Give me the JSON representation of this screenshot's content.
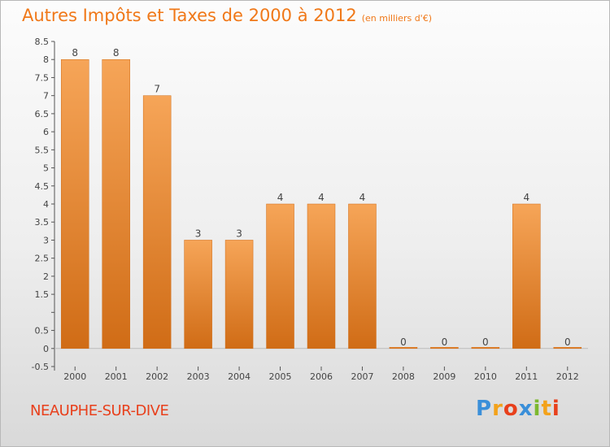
{
  "header": {
    "title": "Autres Impôts et Taxes de 2000 à 2012",
    "subtitle": "(en milliers d'€)"
  },
  "footer": {
    "place": "NEAUPHE-SUR-DIVE",
    "logo": "Proxiti",
    "logo_colors": [
      "#3a8fd9",
      "#f3a21a",
      "#e8401c",
      "#3a8fd9",
      "#7cb82f",
      "#f3a21a",
      "#e8401c"
    ]
  },
  "colors": {
    "bar_top": "#f6a558",
    "bar_bottom": "#d06c16",
    "title": "#f07818",
    "place": "#e8401c"
  },
  "chart_data": {
    "type": "bar",
    "title": "Autres Impôts et Taxes de 2000 à 2012",
    "subtitle": "(en milliers d'€)",
    "categories": [
      "2000",
      "2001",
      "2002",
      "2003",
      "2004",
      "2005",
      "2006",
      "2007",
      "2008",
      "2009",
      "2010",
      "2011",
      "2012"
    ],
    "values": [
      8,
      8,
      7,
      3,
      3,
      4,
      4,
      4,
      0,
      0,
      0,
      4,
      0
    ],
    "value_labels": [
      "8",
      "8",
      "7",
      "3",
      "3",
      "4",
      "4",
      "4",
      "0",
      "0",
      "0",
      "4",
      "0"
    ],
    "ylim": [
      -0.5,
      8.5
    ],
    "yticks": [
      -0.5,
      0,
      0.5,
      1,
      1.5,
      2,
      2.5,
      3,
      3.5,
      4,
      4.5,
      5,
      5.5,
      6,
      6.5,
      7,
      7.5,
      8,
      8.5
    ],
    "ytick_labels": [
      "-0.5",
      "0",
      "0.5",
      "",
      "1.5",
      "2",
      "2.5",
      "3",
      "3.5",
      "4",
      "4.5",
      "5",
      "5.5",
      "6",
      "6.5",
      "7",
      "7.5",
      "8",
      "8.5"
    ],
    "grid": false
  }
}
